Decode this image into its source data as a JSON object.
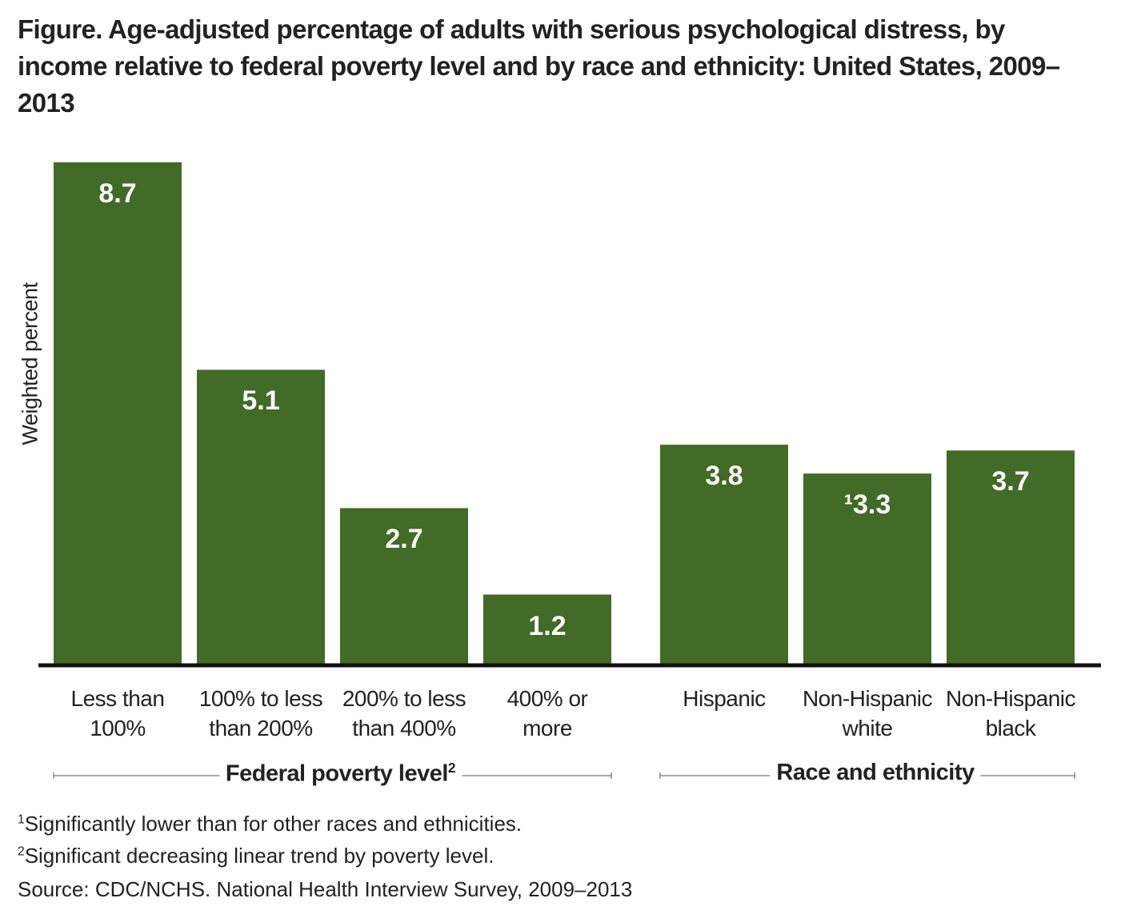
{
  "chart_data": {
    "type": "bar",
    "title": "Figure. Age-adjusted percentage of adults with serious psychological distress, by income relative to federal poverty level and by race and ethnicity: United States, 2009–2013",
    "y_label": "Weighted percent",
    "color": "#416b26",
    "groups": [
      {
        "name": "Federal poverty level",
        "footnote": "2",
        "categories": [
          "Less than\n100%",
          "100% to less\nthan 200%",
          "200% to less\nthan 400%",
          "400% or\nmore"
        ],
        "values": [
          8.7,
          5.1,
          2.7,
          1.2
        ]
      },
      {
        "name": "Race and ethnicity",
        "categories": [
          "Hispanic",
          "Non-Hispanic\nwhite",
          "Non-Hispanic\nblack"
        ],
        "values": [
          3.8,
          3.3,
          3.7
        ],
        "value_labels": [
          "3.8",
          "¹3.3",
          "3.7"
        ]
      }
    ],
    "footnotes": [
      {
        "marker": "1",
        "text": "Significantly lower than for other races and ethnicities."
      },
      {
        "marker": "2",
        "text": "Significant decreasing linear trend by poverty level."
      }
    ],
    "source": "Source: CDC/NCHS. National Health Interview Survey, 2009–2013"
  }
}
